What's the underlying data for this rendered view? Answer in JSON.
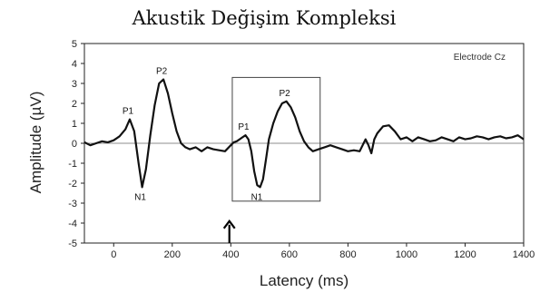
{
  "chart_data": {
    "type": "line",
    "title": "Akustik Değişim Kompleksi",
    "xlabel": "Latency (ms)",
    "ylabel": "Amplitude (µV)",
    "xlim": [
      -100,
      1400
    ],
    "ylim": [
      -5,
      5
    ],
    "x_ticks": [
      0,
      200,
      400,
      600,
      800,
      1000,
      1200,
      1400
    ],
    "y_ticks": [
      -5,
      -4,
      -3,
      -2,
      -1,
      0,
      1,
      2,
      3,
      4,
      5
    ],
    "x_tick_labels": [
      "0",
      "200",
      "400",
      "600",
      "800",
      "1000",
      "1200",
      "1400"
    ],
    "y_tick_labels": [
      "-5",
      "-4",
      "-3",
      "-2",
      "-1",
      "0",
      "1",
      "2",
      "3",
      "4",
      "5"
    ],
    "electrode_label": "Electrode Cz",
    "zero_line": true,
    "highlight_box": {
      "x0": 405,
      "x1": 705,
      "y0": -2.9,
      "y1": 3.3
    },
    "arrow": {
      "x": 395,
      "y_tip": -3.9,
      "y_base": -5
    },
    "series": [
      {
        "x": [
          -100,
          -80,
          -60,
          -40,
          -20,
          0,
          20,
          40,
          55,
          70,
          85,
          97,
          110,
          125,
          140,
          155,
          170,
          185,
          200,
          215,
          230,
          245,
          260,
          280,
          300,
          320,
          340,
          360,
          380,
          400,
          410,
          420,
          430,
          440,
          450,
          460,
          470,
          480,
          490,
          500,
          510,
          520,
          530,
          545,
          560,
          575,
          590,
          605,
          620,
          635,
          650,
          665,
          680,
          700,
          720,
          740,
          760,
          780,
          800,
          820,
          840,
          860,
          870,
          880,
          890,
          900,
          920,
          940,
          960,
          980,
          1000,
          1020,
          1040,
          1060,
          1080,
          1100,
          1120,
          1140,
          1160,
          1180,
          1200,
          1220,
          1240,
          1260,
          1280,
          1300,
          1320,
          1340,
          1360,
          1380,
          1400
        ],
        "y": [
          0.05,
          -0.1,
          0.0,
          0.1,
          0.05,
          0.15,
          0.35,
          0.7,
          1.2,
          0.6,
          -1.0,
          -2.2,
          -1.3,
          0.4,
          1.9,
          3.0,
          3.2,
          2.5,
          1.5,
          0.6,
          0.0,
          -0.2,
          -0.3,
          -0.2,
          -0.4,
          -0.2,
          -0.3,
          -0.35,
          -0.4,
          -0.1,
          0.05,
          0.1,
          0.2,
          0.3,
          0.4,
          0.2,
          -0.4,
          -1.4,
          -2.1,
          -2.2,
          -1.8,
          -0.8,
          0.2,
          1.0,
          1.6,
          2.0,
          2.1,
          1.8,
          1.3,
          0.6,
          0.1,
          -0.2,
          -0.4,
          -0.3,
          -0.2,
          -0.1,
          -0.2,
          -0.3,
          -0.4,
          -0.35,
          -0.4,
          0.2,
          -0.1,
          -0.5,
          0.2,
          0.5,
          0.85,
          0.9,
          0.6,
          0.2,
          0.3,
          0.1,
          0.3,
          0.2,
          0.1,
          0.15,
          0.3,
          0.2,
          0.1,
          0.3,
          0.2,
          0.25,
          0.35,
          0.3,
          0.2,
          0.3,
          0.35,
          0.25,
          0.3,
          0.4,
          0.2
        ]
      }
    ],
    "annotations": [
      {
        "label": "P1",
        "x": 55,
        "y": 1.2
      },
      {
        "label": "N1",
        "x": 97,
        "y": -2.2
      },
      {
        "label": "P2",
        "x": 170,
        "y": 3.2
      },
      {
        "label": "P1",
        "x": 450,
        "y": 0.4
      },
      {
        "label": "N1",
        "x": 495,
        "y": -2.2
      },
      {
        "label": "P2",
        "x": 590,
        "y": 2.1
      }
    ]
  },
  "colors": {
    "line": "#111111",
    "axis": "#222222",
    "box": "#444444",
    "zero": "#666666"
  }
}
